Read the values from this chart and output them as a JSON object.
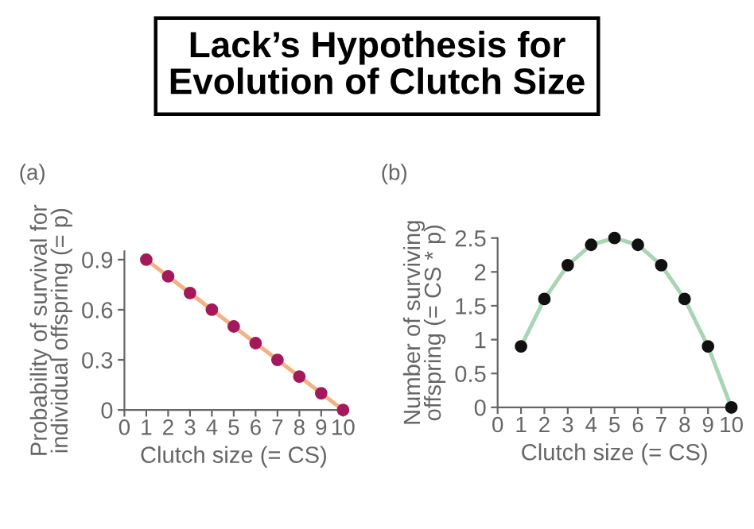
{
  "chart_data": [
    {
      "type": "line",
      "title": "Lack’s Hypothesis for\nEvolution of Clutch Size",
      "annotations": [
        "(a)"
      ],
      "xlabel": "Clutch size (= CS)",
      "ylabel": "Probability of survival for\nindividual offspring (= p)",
      "xlim": [
        0,
        10
      ],
      "xticks": [
        0,
        1,
        2,
        3,
        4,
        5,
        6,
        7,
        8,
        9,
        10
      ],
      "ylim": [
        0,
        0.95
      ],
      "yticks": [
        0,
        0.3,
        0.6,
        0.9
      ],
      "grid": false,
      "series": [
        {
          "type": "line",
          "color": "#f4b183",
          "x": [
            1,
            2,
            3,
            4,
            5,
            6,
            7,
            8,
            9,
            10
          ],
          "values": [
            0.9,
            0.8,
            0.7,
            0.6,
            0.5,
            0.4,
            0.3,
            0.2,
            0.1,
            0
          ]
        },
        {
          "type": "scatter",
          "color": "#a3195b",
          "marker": "circle",
          "x": [
            1,
            2,
            3,
            4,
            5,
            6,
            7,
            8,
            9,
            10
          ],
          "values": [
            0.9,
            0.8,
            0.7,
            0.6,
            0.5,
            0.4,
            0.3,
            0.2,
            0.1,
            0
          ]
        }
      ]
    },
    {
      "type": "line",
      "annotations": [
        "(b)"
      ],
      "xlabel": "Clutch size (= CS)",
      "ylabel": "Number of surviving\noffspring (= CS * p)",
      "xlim": [
        0,
        10
      ],
      "xticks": [
        0,
        1,
        2,
        3,
        4,
        5,
        6,
        7,
        8,
        9,
        10
      ],
      "ylim": [
        0,
        2.5
      ],
      "yticks": [
        0,
        0.5,
        1,
        1.5,
        2,
        2.5
      ],
      "grid": false,
      "series": [
        {
          "type": "line",
          "color": "#a9d5b5",
          "x": [
            1,
            2,
            3,
            4,
            5,
            6,
            7,
            8,
            9,
            10
          ],
          "values": [
            0.9,
            1.6,
            2.1,
            2.4,
            2.5,
            2.4,
            2.1,
            1.6,
            0.9,
            0
          ]
        },
        {
          "type": "scatter",
          "color": "#111111",
          "marker": "circle",
          "x": [
            1,
            2,
            3,
            4,
            5,
            6,
            7,
            8,
            9,
            10
          ],
          "values": [
            0.9,
            1.6,
            2.1,
            2.4,
            2.5,
            2.4,
            2.1,
            1.6,
            0.9,
            0
          ]
        }
      ]
    }
  ]
}
